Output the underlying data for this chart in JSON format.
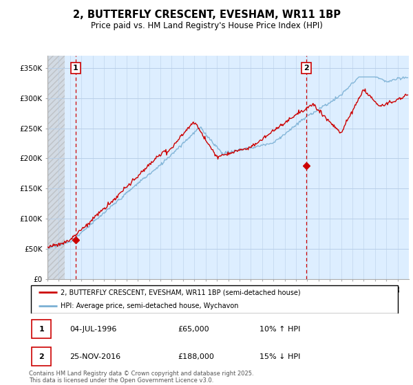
{
  "title": "2, BUTTERFLY CRESCENT, EVESHAM, WR11 1BP",
  "subtitle": "Price paid vs. HM Land Registry's House Price Index (HPI)",
  "legend_line1": "2, BUTTERFLY CRESCENT, EVESHAM, WR11 1BP (semi-detached house)",
  "legend_line2": "HPI: Average price, semi-detached house, Wychavon",
  "footnote": "Contains HM Land Registry data © Crown copyright and database right 2025.\nThis data is licensed under the Open Government Licence v3.0.",
  "marker1_date": "04-JUL-1996",
  "marker1_price": "£65,000",
  "marker1_hpi": "10% ↑ HPI",
  "marker2_date": "25-NOV-2016",
  "marker2_price": "£188,000",
  "marker2_hpi": "15% ↓ HPI",
  "red_color": "#cc0000",
  "blue_color": "#7ab0d4",
  "bg_color": "#ddeeff",
  "hatch_color": "#cccccc",
  "grid_color": "#b8cfe8",
  "ylim_min": 0,
  "ylim_max": 370000,
  "yticks": [
    0,
    50000,
    100000,
    150000,
    200000,
    250000,
    300000,
    350000
  ],
  "ytick_labels": [
    "£0",
    "£50K",
    "£100K",
    "£150K",
    "£200K",
    "£250K",
    "£300K",
    "£350K"
  ],
  "marker1_x": 1996.5,
  "marker1_y": 65000,
  "marker2_x": 2016.92,
  "marker2_y": 188000,
  "xmin": 1994,
  "xmax": 2026,
  "hatch_end": 1995.5
}
